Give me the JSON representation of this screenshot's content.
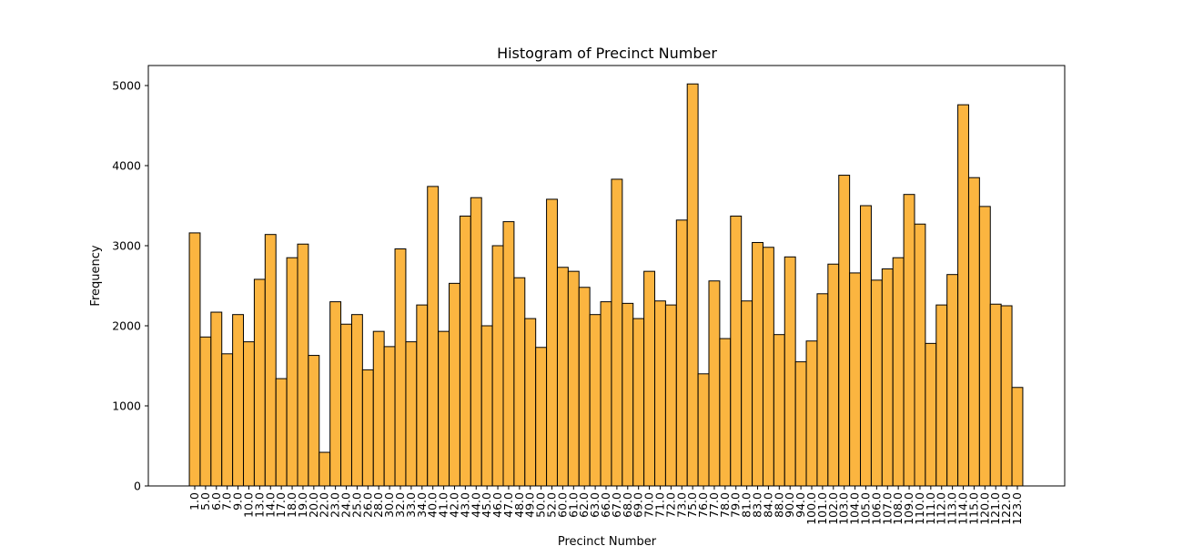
{
  "chart_data": {
    "type": "bar",
    "title": "Histogram of Precinct Number",
    "xlabel": "Precinct Number",
    "ylabel": "Frequency",
    "ylim": [
      0,
      5250
    ],
    "yticks": [
      0,
      1000,
      2000,
      3000,
      4000,
      5000
    ],
    "grid": false,
    "bar_color": "#fbb540",
    "edge_color": "#000000",
    "categories": [
      "1.0",
      "5.0",
      "6.0",
      "7.0",
      "9.0",
      "10.0",
      "13.0",
      "14.0",
      "17.0",
      "18.0",
      "19.0",
      "20.0",
      "22.0",
      "23.0",
      "24.0",
      "25.0",
      "26.0",
      "28.0",
      "30.0",
      "32.0",
      "33.0",
      "34.0",
      "40.0",
      "41.0",
      "42.0",
      "43.0",
      "44.0",
      "45.0",
      "46.0",
      "47.0",
      "48.0",
      "49.0",
      "50.0",
      "52.0",
      "60.0",
      "61.0",
      "62.0",
      "63.0",
      "66.0",
      "67.0",
      "68.0",
      "69.0",
      "70.0",
      "71.0",
      "72.0",
      "73.0",
      "75.0",
      "76.0",
      "77.0",
      "78.0",
      "79.0",
      "81.0",
      "83.0",
      "84.0",
      "88.0",
      "90.0",
      "94.0",
      "100.0",
      "101.0",
      "102.0",
      "103.0",
      "104.0",
      "105.0",
      "106.0",
      "107.0",
      "108.0",
      "109.0",
      "110.0",
      "111.0",
      "112.0",
      "113.0",
      "114.0",
      "115.0",
      "120.0",
      "121.0",
      "122.0",
      "123.0"
    ],
    "values": [
      3160,
      1860,
      2170,
      1650,
      2140,
      1800,
      2580,
      3140,
      1340,
      2850,
      3020,
      1630,
      420,
      2300,
      2020,
      2140,
      1450,
      1930,
      1740,
      2960,
      1800,
      2260,
      3740,
      1930,
      2530,
      3370,
      3600,
      2000,
      3000,
      3300,
      2600,
      2090,
      1730,
      3580,
      2730,
      2680,
      2480,
      2140,
      2300,
      3830,
      2280,
      2090,
      2680,
      2310,
      2260,
      3320,
      5020,
      1400,
      2560,
      1840,
      3370,
      2310,
      3040,
      2980,
      1890,
      2860,
      1550,
      1810,
      2400,
      2770,
      3880,
      2660,
      3500,
      2570,
      2710,
      2850,
      3640,
      3270,
      1780,
      2260,
      2640,
      4760,
      3850,
      3490,
      2270,
      2250,
      1230
    ]
  }
}
